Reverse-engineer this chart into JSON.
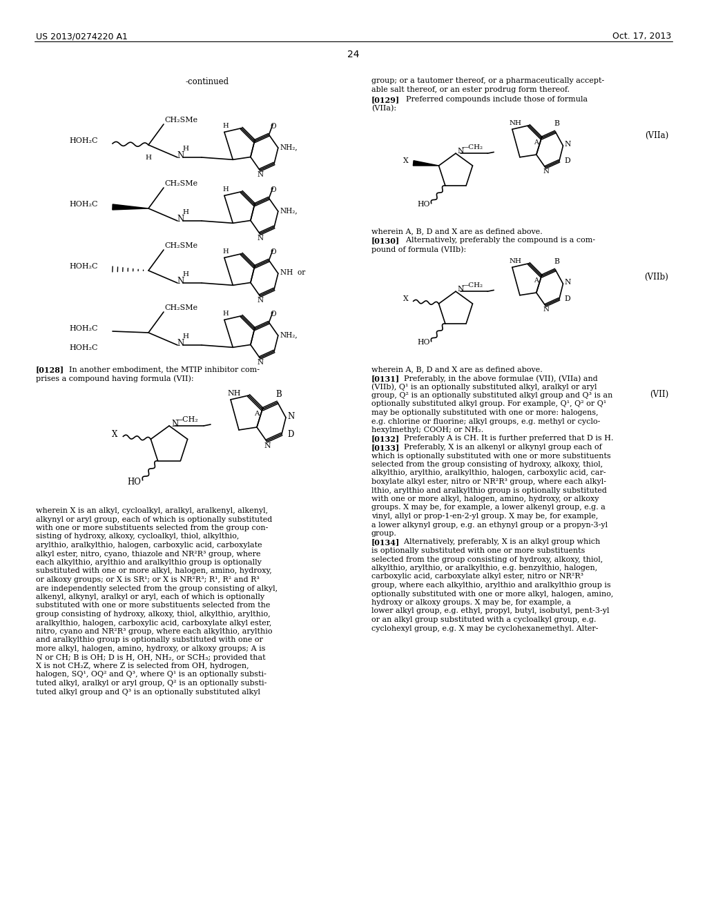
{
  "bg": "#ffffff",
  "header_left": "US 2013/0274220 A1",
  "header_right": "Oct. 17, 2013",
  "page_num": "24",
  "figW": 10.24,
  "figH": 13.2,
  "dpi": 100
}
